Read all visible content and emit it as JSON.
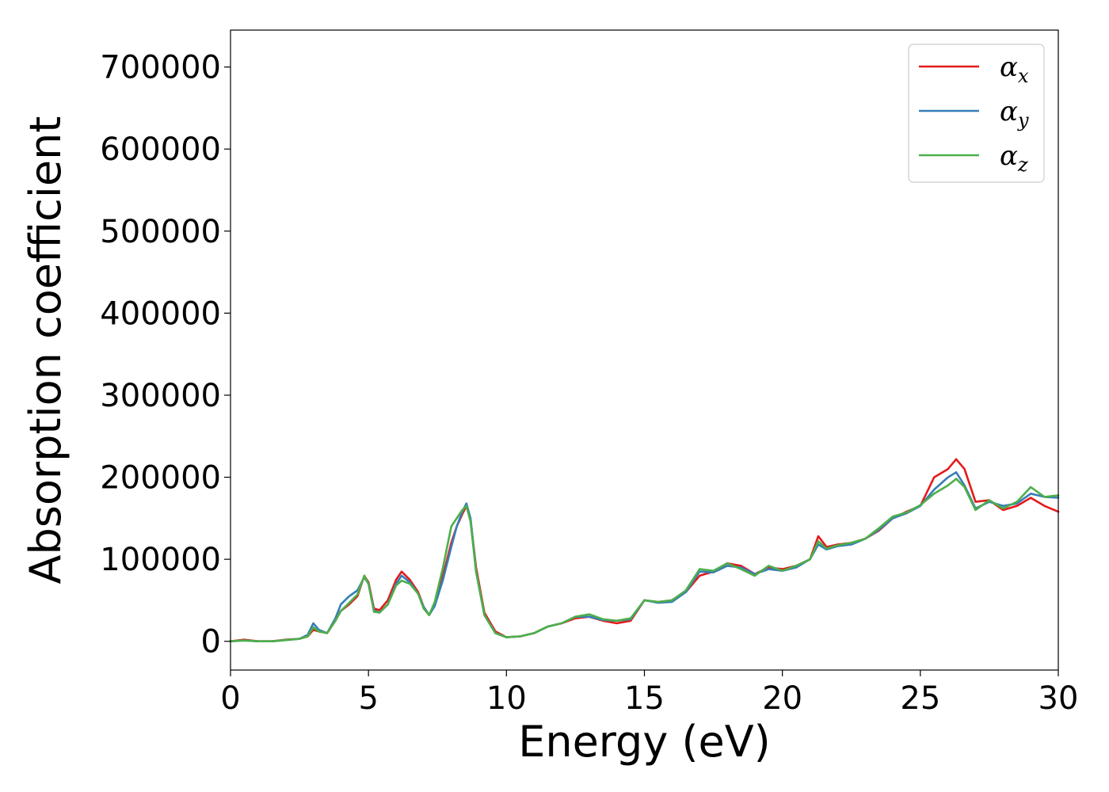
{
  "chart_data": {
    "type": "line",
    "title": "",
    "xlabel": "Energy (eV)",
    "ylabel": "Absorption coefficient",
    "xlim": [
      0,
      30
    ],
    "ylim": [
      -35000,
      745000
    ],
    "xticks": [
      0,
      5,
      10,
      15,
      20,
      25,
      30
    ],
    "yticks": [
      0,
      100000,
      200000,
      300000,
      400000,
      500000,
      600000,
      700000
    ],
    "grid": false,
    "legend_position": "top-right",
    "x": [
      0,
      0.5,
      1,
      1.5,
      2,
      2.5,
      2.8,
      3,
      3.2,
      3.5,
      3.8,
      4,
      4.3,
      4.6,
      4.85,
      5,
      5.2,
      5.4,
      5.7,
      6,
      6.2,
      6.5,
      6.8,
      7,
      7.2,
      7.4,
      7.7,
      8,
      8.2,
      8.4,
      8.55,
      8.7,
      8.9,
      9.2,
      9.6,
      10,
      10.5,
      11,
      11.5,
      12,
      12.5,
      13,
      13.5,
      14,
      14.5,
      15,
      15.5,
      16,
      16.5,
      17,
      17.5,
      18,
      18.5,
      19,
      19.5,
      20,
      20.5,
      21,
      21.3,
      21.6,
      22,
      22.5,
      23,
      23.5,
      24,
      24.5,
      25,
      25.5,
      26,
      26.3,
      26.6,
      27,
      27.5,
      28,
      28.5,
      29,
      29.5,
      30
    ],
    "series": [
      {
        "name": "x",
        "color": "#e41a1c",
        "values": [
          0,
          2000,
          0,
          0,
          2000,
          3000,
          6000,
          14000,
          12000,
          10000,
          25000,
          37000,
          45000,
          55000,
          80000,
          72000,
          40000,
          38000,
          50000,
          75000,
          85000,
          75000,
          60000,
          42000,
          32000,
          45000,
          80000,
          120000,
          140000,
          155000,
          165000,
          148000,
          90000,
          35000,
          12000,
          5000,
          6000,
          10000,
          18000,
          22000,
          28000,
          30000,
          25000,
          22000,
          25000,
          50000,
          48000,
          50000,
          60000,
          80000,
          85000,
          95000,
          92000,
          82000,
          90000,
          88000,
          92000,
          100000,
          128000,
          115000,
          118000,
          120000,
          125000,
          135000,
          150000,
          158000,
          165000,
          200000,
          210000,
          222000,
          210000,
          170000,
          172000,
          160000,
          165000,
          175000,
          165000,
          158000
        ]
      },
      {
        "name": "y",
        "color": "#377eb8",
        "values": [
          0,
          1000,
          0,
          0,
          1500,
          3000,
          8000,
          22000,
          14000,
          10000,
          28000,
          45000,
          55000,
          62000,
          78000,
          70000,
          38000,
          35000,
          45000,
          70000,
          80000,
          72000,
          58000,
          42000,
          32000,
          43000,
          75000,
          115000,
          140000,
          158000,
          168000,
          150000,
          85000,
          32000,
          10000,
          5000,
          6000,
          10000,
          18000,
          22000,
          30000,
          30000,
          26000,
          25000,
          27000,
          50000,
          47000,
          48000,
          60000,
          85000,
          84000,
          92000,
          90000,
          82000,
          88000,
          86000,
          90000,
          100000,
          118000,
          112000,
          116000,
          118000,
          125000,
          136000,
          150000,
          156000,
          165000,
          185000,
          200000,
          206000,
          190000,
          162000,
          170000,
          165000,
          168000,
          180000,
          176000,
          175000
        ]
      },
      {
        "name": "z",
        "color": "#4daf4a",
        "values": [
          0,
          1000,
          0,
          0,
          1500,
          3000,
          6000,
          17000,
          12000,
          10000,
          25000,
          37000,
          47000,
          57000,
          80000,
          70000,
          36000,
          35000,
          45000,
          68000,
          74000,
          70000,
          58000,
          40000,
          32000,
          48000,
          90000,
          140000,
          150000,
          160000,
          165000,
          146000,
          85000,
          32000,
          10000,
          5000,
          6000,
          10000,
          18000,
          22000,
          30000,
          33000,
          27000,
          25000,
          28000,
          50000,
          48000,
          50000,
          62000,
          88000,
          86000,
          95000,
          88000,
          80000,
          92000,
          86000,
          92000,
          100000,
          122000,
          113000,
          117000,
          120000,
          125000,
          138000,
          152000,
          157000,
          166000,
          180000,
          190000,
          198000,
          188000,
          160000,
          172000,
          162000,
          170000,
          188000,
          176000,
          178000
        ]
      }
    ]
  },
  "legend": {
    "symbol": "α",
    "items": [
      {
        "sub": "x",
        "color": "#e41a1c"
      },
      {
        "sub": "y",
        "color": "#377eb8"
      },
      {
        "sub": "z",
        "color": "#4daf4a"
      }
    ]
  }
}
